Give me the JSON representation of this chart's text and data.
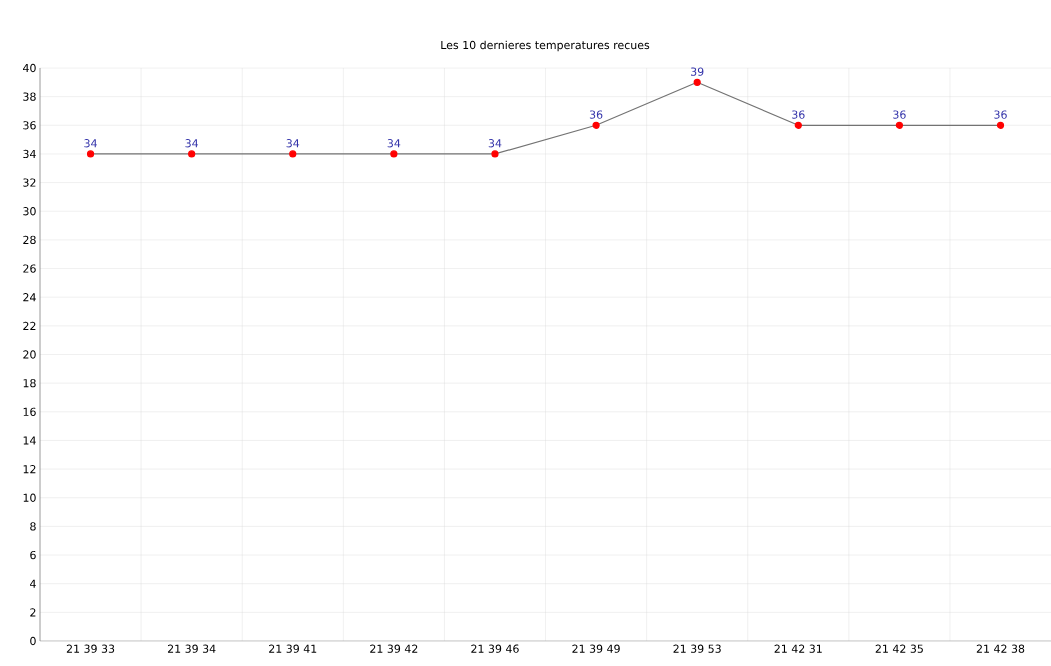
{
  "chart_data": {
    "type": "line",
    "title": "Les 10 dernieres temperatures recues",
    "categories": [
      "21 39 33",
      "21 39 34",
      "21 39 41",
      "21 39 42",
      "21 39 46",
      "21 39 49",
      "21 39 53",
      "21 42 31",
      "21 42 35",
      "21 42 38"
    ],
    "series": [
      {
        "color": "#ff0000",
        "values": [
          34,
          34,
          34,
          34,
          34,
          36,
          39,
          36,
          36,
          36
        ]
      }
    ],
    "ylim": [
      0,
      40
    ],
    "yticks": [
      0,
      2,
      4,
      6,
      8,
      10,
      12,
      14,
      16,
      18,
      20,
      22,
      24,
      26,
      28,
      30,
      32,
      34,
      36,
      38,
      40
    ],
    "grid": true,
    "data_labels": true,
    "marker": "circle"
  }
}
